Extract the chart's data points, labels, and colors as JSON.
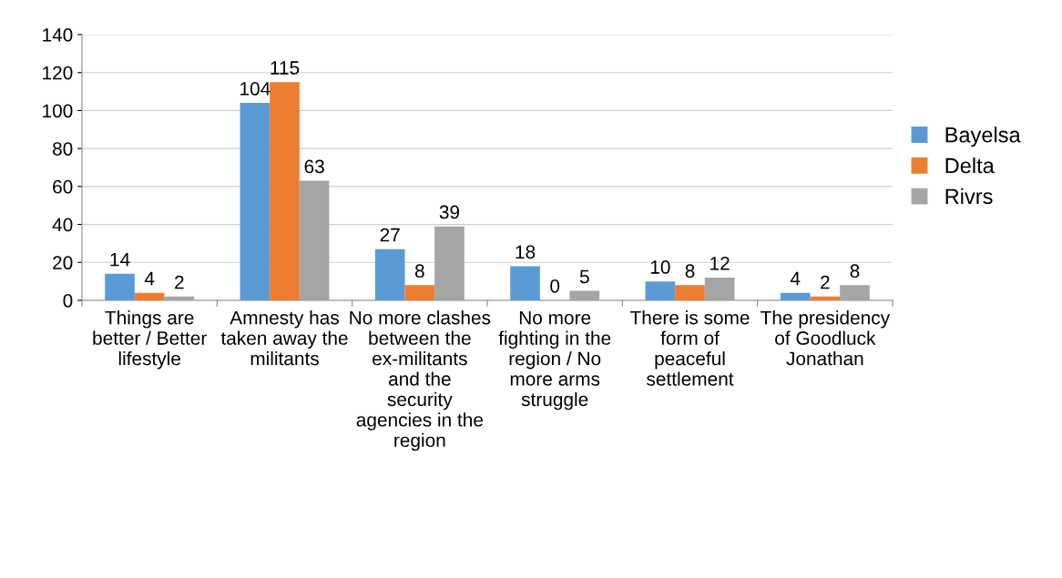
{
  "chart_data": {
    "type": "bar",
    "categories": [
      "Things are better / Better lifestyle",
      "Amnesty has taken away the militants",
      "No more clashes between the ex-militants and the security agencies in the region",
      "No more fighting in the region / No more arms struggle",
      "There is some form of peaceful settlement",
      "The presidency of Goodluck Jonathan"
    ],
    "series": [
      {
        "name": "Bayelsa",
        "color": "#5b9bd5",
        "values": [
          14,
          104,
          27,
          18,
          10,
          4
        ]
      },
      {
        "name": "Delta",
        "color": "#ed7d31",
        "values": [
          4,
          115,
          8,
          0,
          8,
          2
        ]
      },
      {
        "name": "Rivrs",
        "color": "#a5a5a5",
        "values": [
          2,
          63,
          39,
          5,
          12,
          8
        ]
      }
    ],
    "ylim": [
      0,
      140
    ],
    "yticks": [
      0,
      20,
      40,
      60,
      80,
      100,
      120,
      140
    ],
    "grid": "y",
    "legend": "right",
    "data_labels": true
  }
}
